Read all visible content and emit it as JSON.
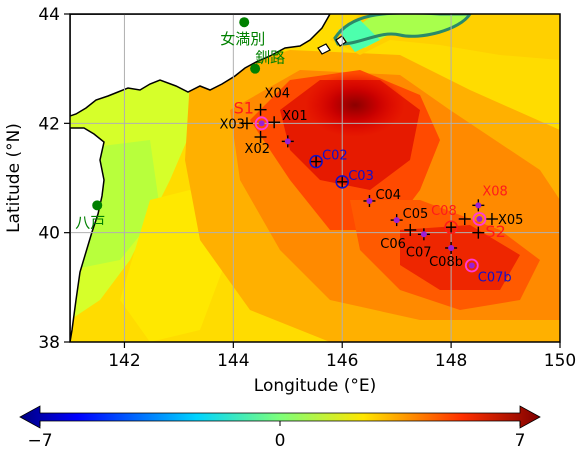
{
  "map": {
    "xlabel": "Longitude (°E)",
    "ylabel": "Latitude (°N)",
    "xlim": [
      141,
      150
    ],
    "ylim": [
      38,
      44
    ],
    "xticks": [
      142,
      144,
      146,
      148,
      150
    ],
    "yticks": [
      38,
      40,
      42,
      44
    ],
    "grid": true
  },
  "colorbar": {
    "min": -7,
    "max": 7,
    "ticks": [
      "−7",
      "0",
      "7"
    ],
    "colormap": "jet",
    "extend": "both"
  },
  "cities": [
    {
      "name": "女満別",
      "lon": 144.2,
      "lat": 43.85,
      "color": "#008000"
    },
    {
      "name": "釧路",
      "lon": 144.4,
      "lat": 43.0,
      "color": "#008000"
    },
    {
      "name": "八戸",
      "lon": 141.5,
      "lat": 40.5,
      "color": "#008000"
    }
  ],
  "areas": [
    {
      "name": "S1",
      "color": "#ff1a1a"
    },
    {
      "name": "S2",
      "color": "#ff1a1a"
    }
  ],
  "stations": [
    {
      "name": "X01",
      "lon": 144.75,
      "lat": 42.02,
      "marker": "plus",
      "color": "#000000"
    },
    {
      "name": "X02",
      "lon": 144.5,
      "lat": 41.75,
      "marker": "plus",
      "color": "#000000"
    },
    {
      "name": "X03",
      "lon": 144.25,
      "lat": 42.0,
      "marker": "plus",
      "color": "#000000"
    },
    {
      "name": "X04",
      "lon": 144.5,
      "lat": 42.25,
      "marker": "plus",
      "color": "#000000"
    },
    {
      "name": "S1",
      "lon": 144.52,
      "lat": 42.0,
      "marker": "ring-dot",
      "color": "#ff1a1a"
    },
    {
      "name": "",
      "lon": 145.0,
      "lat": 41.67,
      "marker": "plus-dot",
      "color": "#000000"
    },
    {
      "name": "C02",
      "lon": 145.52,
      "lat": 41.3,
      "marker": "ring-plus",
      "color": "#1010cc"
    },
    {
      "name": "C03",
      "lon": 146.0,
      "lat": 40.93,
      "marker": "ring-plus",
      "color": "#1010cc"
    },
    {
      "name": "C04",
      "lon": 146.5,
      "lat": 40.58,
      "marker": "plus-dot",
      "color": "#000000"
    },
    {
      "name": "C05",
      "lon": 147.0,
      "lat": 40.23,
      "marker": "plus-dot",
      "color": "#000000"
    },
    {
      "name": "C06",
      "lon": 147.25,
      "lat": 40.05,
      "marker": "plus",
      "color": "#000000"
    },
    {
      "name": "C07",
      "lon": 147.5,
      "lat": 39.97,
      "marker": "plus-dot",
      "color": "#000000"
    },
    {
      "name": "C08",
      "lon": 148.0,
      "lat": 40.1,
      "marker": "ring-plus",
      "color": "#ff1a1a"
    },
    {
      "name": "C08b",
      "lon": 148.0,
      "lat": 39.72,
      "marker": "plus-dot",
      "color": "#000000"
    },
    {
      "name": "C07b",
      "lon": 148.38,
      "lat": 39.4,
      "marker": "ring-dot",
      "color": "#1010cc"
    },
    {
      "name": "X05",
      "lon": 148.75,
      "lat": 40.25,
      "marker": "plus",
      "color": "#000000"
    },
    {
      "name": "X06",
      "lon": 148.25,
      "lat": 40.25,
      "marker": "plus",
      "color": "#000000"
    },
    {
      "name": "X07",
      "lon": 148.5,
      "lat": 40.0,
      "marker": "plus",
      "color": "#000000"
    },
    {
      "name": "X08",
      "lon": 148.5,
      "lat": 40.5,
      "marker": "plus-dot",
      "color": "#ff1a1a"
    },
    {
      "name": "S2",
      "lon": 148.52,
      "lat": 40.25,
      "marker": "ring-dot",
      "color": "#ff1a1a"
    }
  ]
}
